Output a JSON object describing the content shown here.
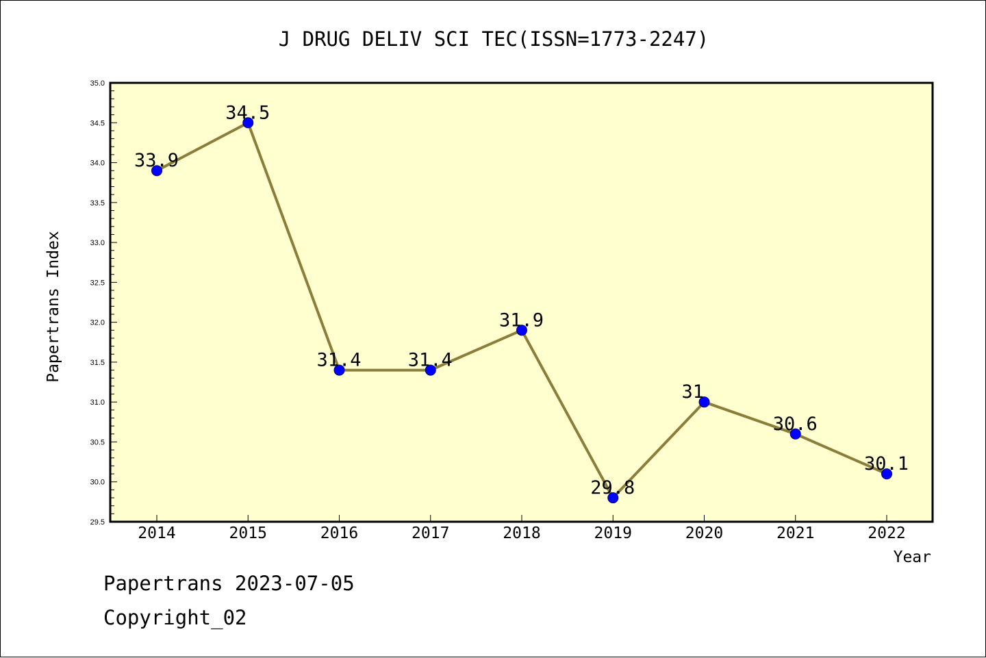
{
  "chart_data": {
    "type": "line",
    "title": "J DRUG DELIV SCI TEC(ISSN=1773-2247)",
    "xlabel": "Year",
    "ylabel": "Papertrans Index",
    "categories": [
      "2014",
      "2015",
      "2016",
      "2017",
      "2018",
      "2019",
      "2020",
      "2021",
      "2022"
    ],
    "series": [
      {
        "values": [
          33.9,
          34.5,
          31.4,
          31.4,
          31.9,
          29.8,
          31,
          30.6,
          30.1
        ],
        "data_labels": [
          "33.9",
          "34.5",
          "31.4",
          "31.4",
          "31.9",
          "29.8",
          "31",
          "30.6",
          "30.1"
        ]
      }
    ],
    "ylim": [
      29.5,
      35.0
    ],
    "yticks": [
      "29.5",
      "30.0",
      "30.5",
      "31.0",
      "31.5",
      "32.0",
      "32.5",
      "33.0",
      "33.5",
      "34.0",
      "34.5",
      "35.0"
    ],
    "grid": false,
    "legend": "none",
    "colors": {
      "plot_background": "#ffffd0",
      "line": "#8b7d3a",
      "marker": "#0000ff"
    }
  },
  "footer": {
    "line1": "Papertrans 2023-07-05",
    "line2": "Copyright_02"
  }
}
